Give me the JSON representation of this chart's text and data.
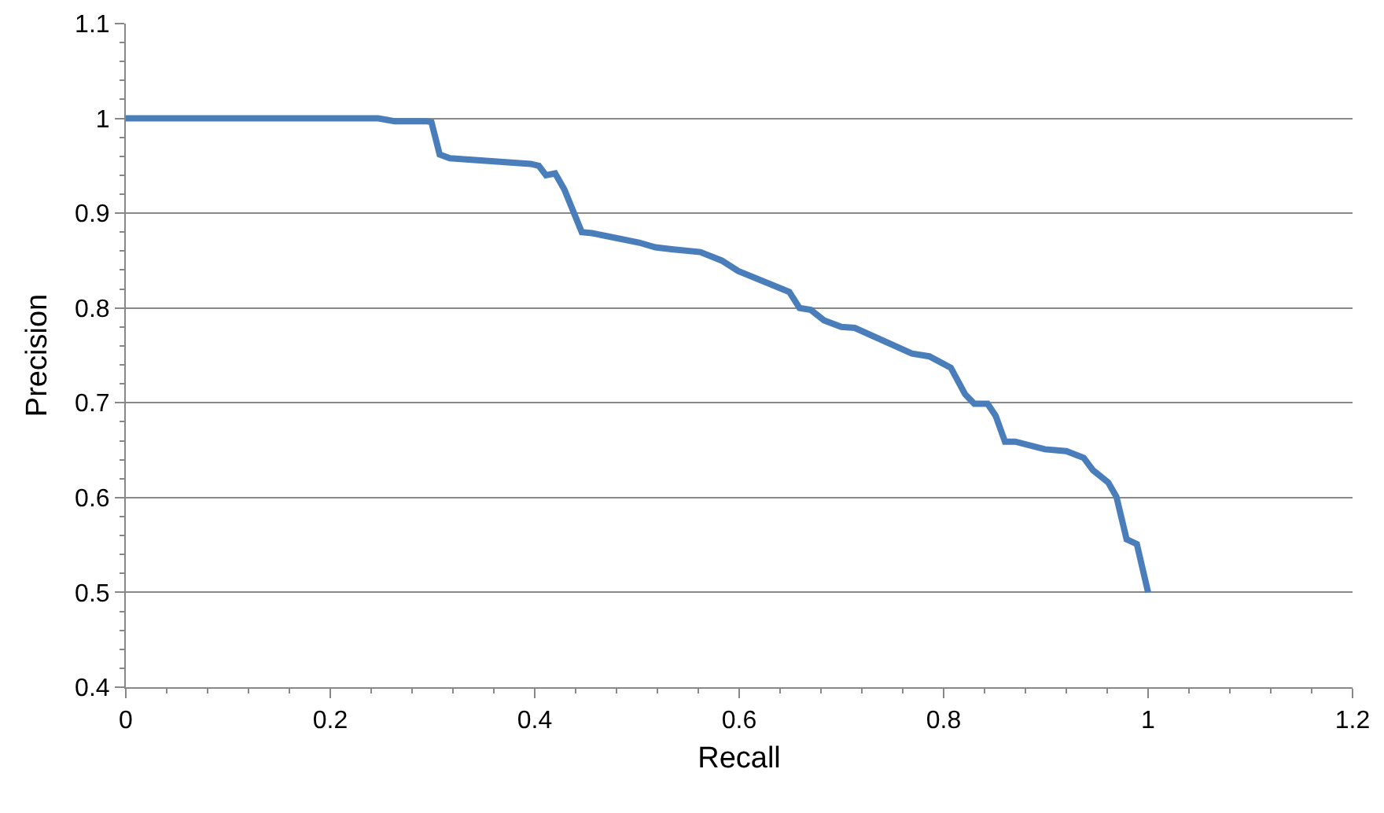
{
  "chart_data": {
    "type": "line",
    "xlabel": "Recall",
    "ylabel": "Precision",
    "series": [
      {
        "color": "#4a7ebb",
        "x": [
          0,
          0.247,
          0.263,
          0.294,
          0.299,
          0.307,
          0.317,
          0.396,
          0.404,
          0.411,
          0.42,
          0.429,
          0.446,
          0.456,
          0.502,
          0.518,
          0.534,
          0.562,
          0.583,
          0.599,
          0.649,
          0.659,
          0.67,
          0.683,
          0.7,
          0.713,
          0.769,
          0.786,
          0.807,
          0.821,
          0.83,
          0.843,
          0.851,
          0.86,
          0.87,
          0.899,
          0.92,
          0.937,
          0.946,
          0.961,
          0.969,
          0.979,
          0.989,
          1.0
        ],
        "values": [
          1,
          1,
          0.997,
          0.997,
          0.996,
          0.962,
          0.958,
          0.952,
          0.95,
          0.94,
          0.942,
          0.925,
          0.88,
          0.879,
          0.869,
          0.864,
          0.862,
          0.859,
          0.85,
          0.839,
          0.817,
          0.8,
          0.798,
          0.787,
          0.78,
          0.779,
          0.752,
          0.749,
          0.737,
          0.709,
          0.699,
          0.699,
          0.686,
          0.659,
          0.659,
          0.651,
          0.649,
          0.642,
          0.629,
          0.616,
          0.601,
          0.556,
          0.551,
          0.5
        ]
      }
    ],
    "xlim": [
      0,
      1.2
    ],
    "xticks": [
      0,
      0.2,
      0.4,
      0.6,
      0.8,
      1,
      1.2
    ],
    "ylim": [
      0.4,
      1.1
    ],
    "yticks": [
      0.4,
      0.5,
      0.6,
      0.7,
      0.8,
      0.9,
      1,
      1.1
    ],
    "grid": "y",
    "marker": "none",
    "line_style": "solid"
  }
}
